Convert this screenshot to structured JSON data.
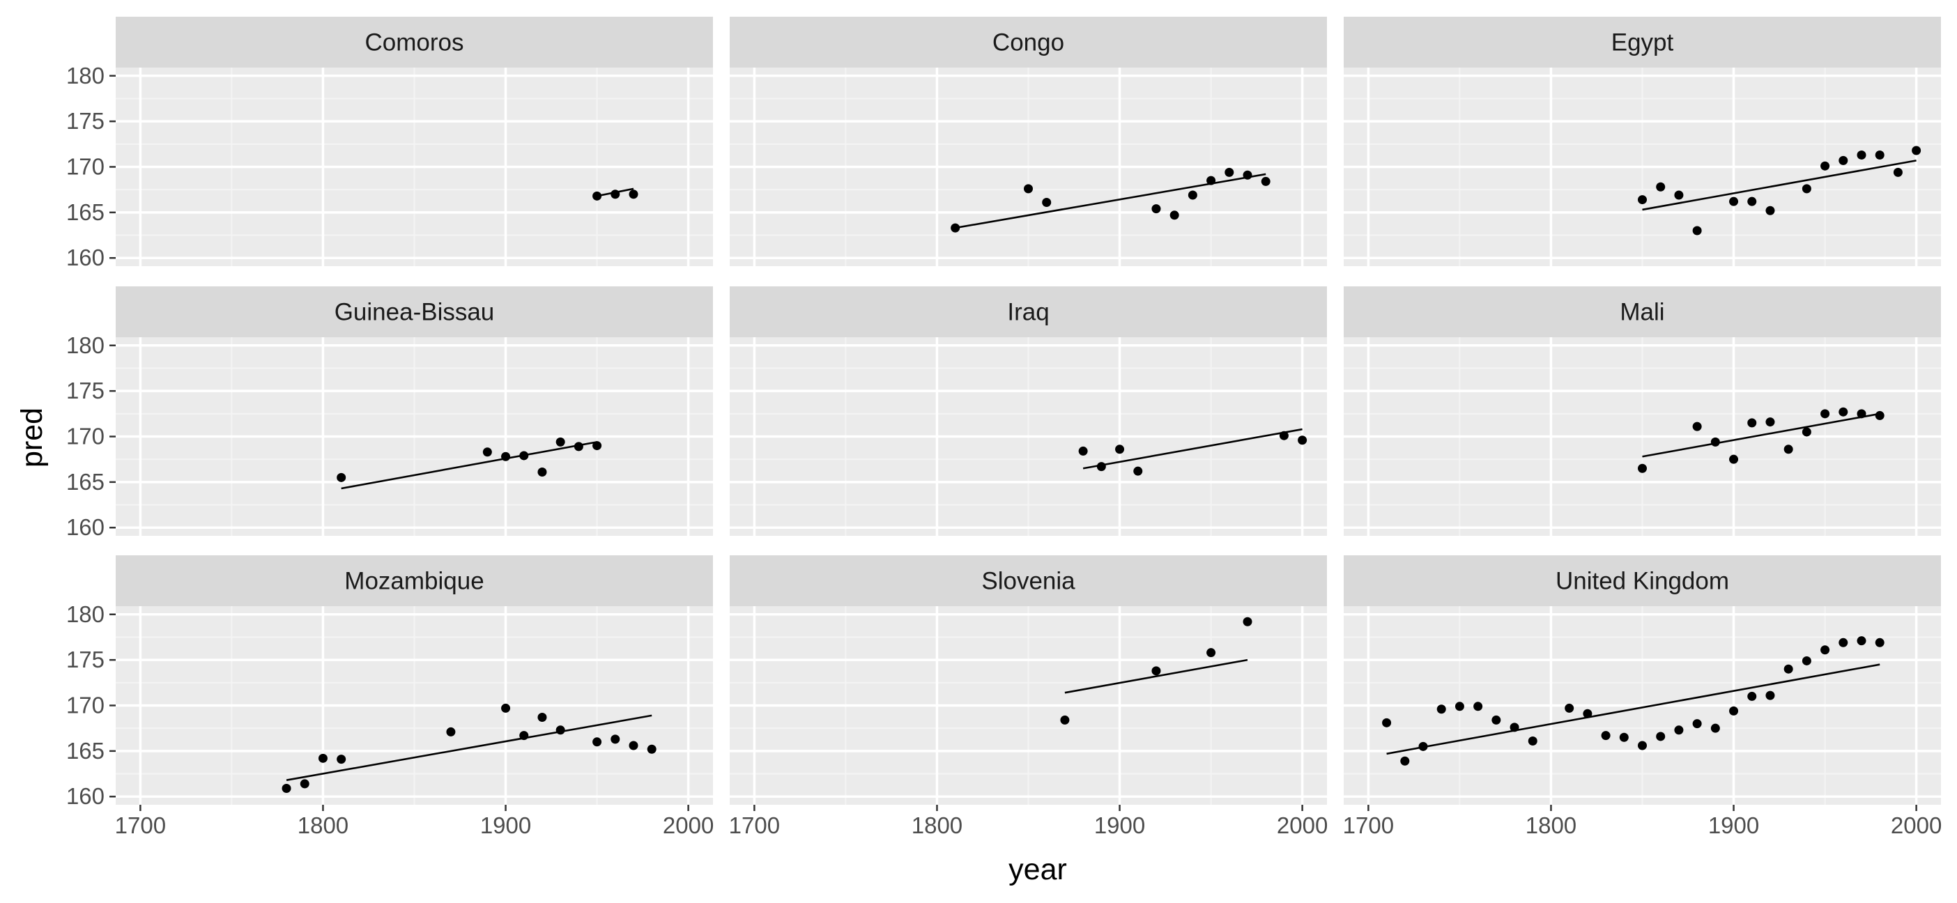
{
  "chart_data": {
    "type": "scatter",
    "xlabel": "year",
    "ylabel": "pred",
    "xlim": [
      1700,
      2000
    ],
    "ylim": [
      160,
      180
    ],
    "x_ticks": [
      1700,
      1800,
      1900,
      2000
    ],
    "y_ticks": [
      160,
      165,
      170,
      175,
      180
    ],
    "grid": true,
    "panels": [
      {
        "name": "Comoros",
        "points": [
          [
            1950,
            166.8
          ],
          [
            1960,
            167.0
          ],
          [
            1970,
            167.0
          ]
        ],
        "fit": [
          [
            1950,
            166.8
          ],
          [
            1970,
            167.6
          ]
        ]
      },
      {
        "name": "Congo",
        "points": [
          [
            1810,
            163.3
          ],
          [
            1850,
            167.6
          ],
          [
            1860,
            166.1
          ],
          [
            1920,
            165.4
          ],
          [
            1930,
            164.7
          ],
          [
            1940,
            166.9
          ],
          [
            1950,
            168.5
          ],
          [
            1960,
            169.4
          ],
          [
            1970,
            169.1
          ],
          [
            1980,
            168.4
          ]
        ],
        "fit": [
          [
            1810,
            163.3
          ],
          [
            1980,
            169.2
          ]
        ]
      },
      {
        "name": "Egypt",
        "points": [
          [
            1850,
            166.4
          ],
          [
            1860,
            167.8
          ],
          [
            1870,
            166.9
          ],
          [
            1880,
            163.0
          ],
          [
            1900,
            166.2
          ],
          [
            1910,
            166.2
          ],
          [
            1920,
            165.2
          ],
          [
            1940,
            167.6
          ],
          [
            1950,
            170.1
          ],
          [
            1960,
            170.7
          ],
          [
            1970,
            171.3
          ],
          [
            1980,
            171.3
          ],
          [
            1990,
            169.4
          ],
          [
            2000,
            171.8
          ]
        ],
        "fit": [
          [
            1850,
            165.3
          ],
          [
            2000,
            170.7
          ]
        ]
      },
      {
        "name": "Guinea-Bissau",
        "points": [
          [
            1810,
            165.5
          ],
          [
            1890,
            168.3
          ],
          [
            1900,
            167.8
          ],
          [
            1910,
            167.9
          ],
          [
            1920,
            166.1
          ],
          [
            1930,
            169.4
          ],
          [
            1940,
            168.9
          ],
          [
            1950,
            169.0
          ]
        ],
        "fit": [
          [
            1810,
            164.3
          ],
          [
            1950,
            169.4
          ]
        ]
      },
      {
        "name": "Iraq",
        "points": [
          [
            1880,
            168.4
          ],
          [
            1890,
            166.7
          ],
          [
            1900,
            168.6
          ],
          [
            1910,
            166.2
          ],
          [
            1990,
            170.1
          ],
          [
            2000,
            169.6
          ]
        ],
        "fit": [
          [
            1880,
            166.5
          ],
          [
            2000,
            170.8
          ]
        ]
      },
      {
        "name": "Mali",
        "points": [
          [
            1850,
            166.5
          ],
          [
            1880,
            171.1
          ],
          [
            1890,
            169.4
          ],
          [
            1900,
            167.5
          ],
          [
            1910,
            171.5
          ],
          [
            1920,
            171.6
          ],
          [
            1930,
            168.6
          ],
          [
            1940,
            170.5
          ],
          [
            1950,
            172.5
          ],
          [
            1960,
            172.7
          ],
          [
            1970,
            172.5
          ],
          [
            1980,
            172.3
          ]
        ],
        "fit": [
          [
            1850,
            167.8
          ],
          [
            1980,
            172.5
          ]
        ]
      },
      {
        "name": "Mozambique",
        "points": [
          [
            1780,
            160.9
          ],
          [
            1790,
            161.4
          ],
          [
            1800,
            164.2
          ],
          [
            1810,
            164.1
          ],
          [
            1870,
            167.1
          ],
          [
            1900,
            169.7
          ],
          [
            1910,
            166.7
          ],
          [
            1920,
            168.7
          ],
          [
            1930,
            167.3
          ],
          [
            1950,
            166.0
          ],
          [
            1960,
            166.3
          ],
          [
            1970,
            165.6
          ],
          [
            1980,
            165.2
          ]
        ],
        "fit": [
          [
            1780,
            161.8
          ],
          [
            1980,
            168.9
          ]
        ]
      },
      {
        "name": "Slovenia",
        "points": [
          [
            1870,
            168.4
          ],
          [
            1920,
            173.8
          ],
          [
            1950,
            175.8
          ],
          [
            1970,
            179.2
          ]
        ],
        "fit": [
          [
            1870,
            171.4
          ],
          [
            1970,
            175.0
          ]
        ]
      },
      {
        "name": "United Kingdom",
        "points": [
          [
            1710,
            168.1
          ],
          [
            1720,
            163.9
          ],
          [
            1730,
            165.5
          ],
          [
            1740,
            169.6
          ],
          [
            1750,
            169.9
          ],
          [
            1760,
            169.9
          ],
          [
            1770,
            168.4
          ],
          [
            1780,
            167.6
          ],
          [
            1790,
            166.1
          ],
          [
            1810,
            169.7
          ],
          [
            1820,
            169.1
          ],
          [
            1830,
            166.7
          ],
          [
            1840,
            166.5
          ],
          [
            1850,
            165.6
          ],
          [
            1860,
            166.6
          ],
          [
            1870,
            167.3
          ],
          [
            1880,
            168.0
          ],
          [
            1890,
            167.5
          ],
          [
            1900,
            169.4
          ],
          [
            1910,
            171.0
          ],
          [
            1920,
            171.1
          ],
          [
            1930,
            174.0
          ],
          [
            1940,
            174.9
          ],
          [
            1950,
            176.1
          ],
          [
            1960,
            176.9
          ],
          [
            1970,
            177.1
          ],
          [
            1980,
            176.9
          ]
        ],
        "fit": [
          [
            1710,
            164.7
          ],
          [
            1980,
            174.5
          ]
        ]
      }
    ]
  }
}
